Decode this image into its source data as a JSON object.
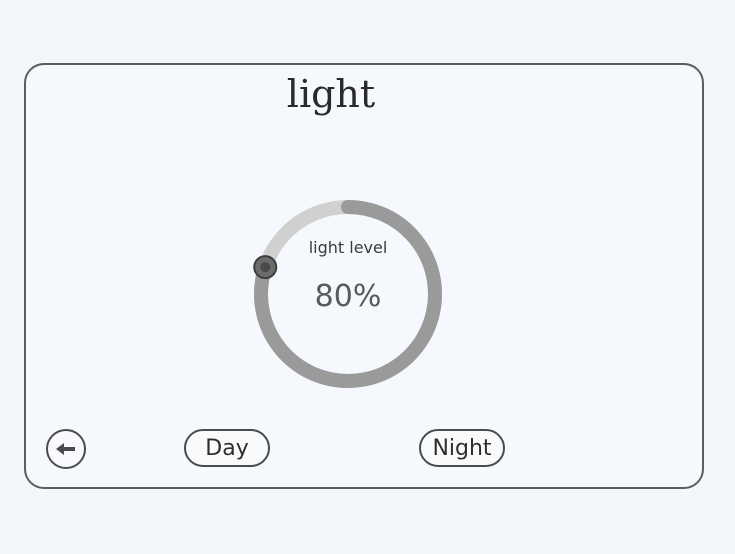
{
  "screen": {
    "title": "light"
  },
  "light_control": {
    "label": "light level",
    "value_text": "80%",
    "level_fraction": 0.8
  },
  "buttons": {
    "day": "Day",
    "night": "Night",
    "back_icon": "arrow-left-icon"
  },
  "colors": {
    "background": "#f3f6fb",
    "stroke": "#5d5d5d",
    "dial_track": "#d0d0d0",
    "dial_fill": "#9a9a9a"
  }
}
